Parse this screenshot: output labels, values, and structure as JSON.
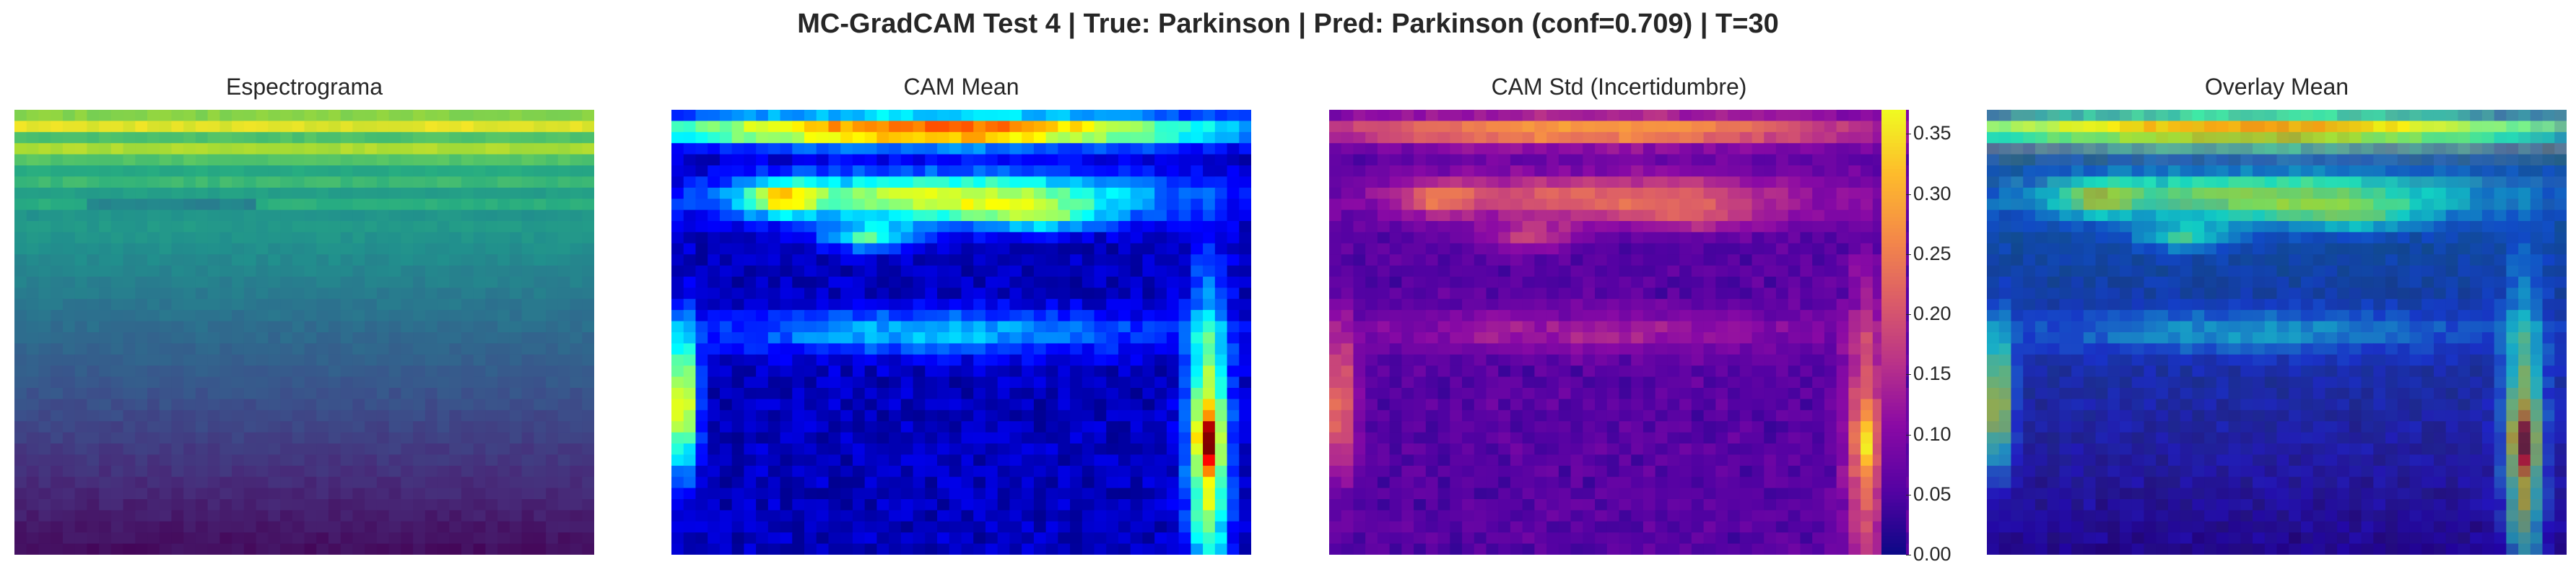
{
  "figure": {
    "title": "MC-GradCAM Test 4 | True: Parkinson | Pred: Parkinson (conf=0.709) | T=30"
  },
  "chart_data": [
    {
      "type": "heatmap",
      "title": "Espectrograma",
      "colormap": "viridis",
      "grid": false
    },
    {
      "type": "heatmap",
      "title": "CAM Mean",
      "colormap": "jet",
      "grid": false
    },
    {
      "type": "heatmap",
      "title": "CAM Std (Incertidumbre)",
      "colormap": "plasma",
      "grid": false,
      "colorbar": {
        "range": [
          0.0,
          0.37
        ],
        "ticks": [
          0.0,
          0.05,
          0.1,
          0.15,
          0.2,
          0.25,
          0.3,
          0.35
        ],
        "tick_labels": [
          "0.00",
          "0.05",
          "0.10",
          "0.15",
          "0.20",
          "0.25",
          "0.30",
          "0.35"
        ]
      }
    },
    {
      "type": "heatmap",
      "title": "Overlay Mean",
      "colormap": "jet over viridis",
      "grid": false
    }
  ]
}
